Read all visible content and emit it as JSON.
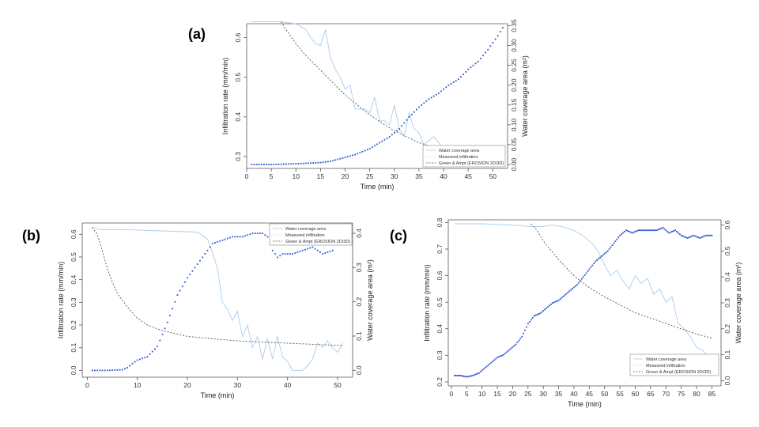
{
  "panels": {
    "a": "(a)",
    "b": "(b)",
    "c": "(c)"
  },
  "colors": {
    "water": "#a9cdee",
    "measured": "#2f55d4",
    "model": "#555555"
  },
  "chart_data": [
    {
      "id": "a",
      "type": "line",
      "xlabel": "Time (min)",
      "ylabel": "Infiltration rate (mm/min)",
      "y2label": "Water coverage area (m²)",
      "xlim": [
        0,
        53
      ],
      "ylim": [
        0.27,
        0.635
      ],
      "y2lim": [
        -0.01,
        0.355
      ],
      "xticks": [
        0,
        5,
        10,
        15,
        20,
        25,
        30,
        35,
        40,
        45,
        50
      ],
      "yticks": [
        0.3,
        0.4,
        0.5,
        0.6
      ],
      "y2ticks": [
        0.0,
        0.05,
        0.1,
        0.15,
        0.2,
        0.25,
        0.3,
        0.35
      ],
      "legend": [
        "Water coverage area",
        "Measured infiltration",
        "Green & Ampt (EROSION 2D/3D)"
      ],
      "legend_position": "bottom-right",
      "series": [
        {
          "name": "Measured infiltration",
          "axis": "left",
          "style": "solid",
          "x": [
            1,
            7,
            10,
            12,
            13,
            14,
            15,
            16,
            17,
            18,
            19,
            20,
            21,
            22,
            24,
            25,
            26,
            27,
            28,
            29,
            30,
            31,
            32,
            33,
            34,
            35,
            36,
            37,
            38,
            40,
            42,
            52
          ],
          "y": [
            0.64,
            0.64,
            0.635,
            0.62,
            0.6,
            0.585,
            0.58,
            0.62,
            0.55,
            0.52,
            0.5,
            0.47,
            0.48,
            0.42,
            0.42,
            0.41,
            0.45,
            0.39,
            0.39,
            0.38,
            0.43,
            0.37,
            0.35,
            0.41,
            0.37,
            0.36,
            0.33,
            0.34,
            0.35,
            0.32,
            0.3,
            0.28
          ]
        },
        {
          "name": "Green & Ampt (EROSION 2D/3D)",
          "axis": "left",
          "style": "dashed",
          "x": [
            7,
            8,
            10,
            12,
            14,
            16,
            18,
            20,
            22,
            25,
            28,
            30,
            35,
            40,
            45,
            52
          ],
          "y": [
            0.64,
            0.62,
            0.585,
            0.555,
            0.53,
            0.505,
            0.48,
            0.455,
            0.435,
            0.405,
            0.38,
            0.365,
            0.335,
            0.315,
            0.3,
            0.285
          ]
        },
        {
          "name": "Water coverage area",
          "axis": "right",
          "style": "points",
          "x": [
            1,
            5,
            10,
            15,
            17,
            20,
            22,
            25,
            27,
            29,
            31,
            33,
            35,
            37,
            39,
            41,
            43,
            45,
            47,
            49,
            51,
            52
          ],
          "y": [
            0.0,
            0.0,
            0.002,
            0.005,
            0.008,
            0.018,
            0.025,
            0.04,
            0.055,
            0.07,
            0.09,
            0.12,
            0.145,
            0.165,
            0.18,
            0.2,
            0.215,
            0.24,
            0.26,
            0.29,
            0.325,
            0.345
          ]
        }
      ]
    },
    {
      "id": "b",
      "type": "line",
      "xlabel": "Time (min)",
      "ylabel": "Infiltration rate (mm/min)",
      "y2label": "Water coverage area (m²)",
      "xlim": [
        -1,
        53
      ],
      "ylim": [
        -0.03,
        0.65
      ],
      "y2lim": [
        -0.02,
        0.43
      ],
      "xticks": [
        0,
        10,
        20,
        30,
        40,
        50
      ],
      "yticks": [
        0.0,
        0.1,
        0.2,
        0.3,
        0.4,
        0.5,
        0.6
      ],
      "y2ticks": [
        0.0,
        0.1,
        0.2,
        0.3,
        0.4
      ],
      "legend": [
        "Water coverage area",
        "Measured infiltration",
        "Green & Ampt (EROSION 2D/3D)"
      ],
      "legend_position": "top-right",
      "series": [
        {
          "name": "Measured infiltration",
          "axis": "left",
          "style": "solid",
          "x": [
            1,
            3,
            8,
            15,
            22,
            24,
            25,
            26,
            27,
            28,
            29,
            30,
            31,
            32,
            33,
            34,
            35,
            36,
            37,
            38,
            39,
            40,
            41,
            42,
            43,
            44,
            45,
            46,
            47,
            48,
            49,
            50,
            51
          ],
          "y": [
            0.63,
            0.62,
            0.62,
            0.615,
            0.61,
            0.58,
            0.52,
            0.45,
            0.3,
            0.27,
            0.22,
            0.26,
            0.15,
            0.2,
            0.1,
            0.15,
            0.05,
            0.14,
            0.05,
            0.15,
            0.06,
            0.04,
            0.0,
            0.0,
            0.0,
            0.02,
            0.05,
            0.12,
            0.1,
            0.13,
            0.1,
            0.08,
            0.12
          ]
        },
        {
          "name": "Green & Ampt (EROSION 2D/3D)",
          "axis": "left",
          "style": "dashed",
          "x": [
            1,
            2,
            3,
            4,
            5,
            6,
            8,
            10,
            12,
            15,
            20,
            25,
            30,
            35,
            40,
            45,
            51
          ],
          "y": [
            0.63,
            0.6,
            0.53,
            0.45,
            0.39,
            0.34,
            0.28,
            0.23,
            0.2,
            0.175,
            0.15,
            0.14,
            0.13,
            0.125,
            0.12,
            0.115,
            0.11
          ]
        },
        {
          "name": "Water coverage area",
          "axis": "right",
          "style": "points",
          "x": [
            1,
            4,
            7,
            8,
            9,
            10,
            12,
            14,
            16,
            18,
            20,
            22,
            23,
            24,
            25,
            27,
            29,
            31,
            33,
            35,
            36,
            37,
            38,
            39,
            41,
            43,
            45,
            47,
            49
          ],
          "y": [
            0.0,
            0.0,
            0.002,
            0.008,
            0.02,
            0.03,
            0.04,
            0.07,
            0.14,
            0.22,
            0.27,
            0.31,
            0.33,
            0.35,
            0.37,
            0.38,
            0.39,
            0.39,
            0.4,
            0.4,
            0.39,
            0.35,
            0.33,
            0.34,
            0.34,
            0.35,
            0.36,
            0.34,
            0.35
          ]
        }
      ]
    },
    {
      "id": "c",
      "type": "line",
      "xlabel": "Time (min)",
      "ylabel": "Infiltration rate (mm/min)",
      "y2label": "Water coverage area (m²)",
      "xlim": [
        -1,
        88
      ],
      "ylim": [
        0.185,
        0.81
      ],
      "y2lim": [
        -0.02,
        0.62
      ],
      "xticks": [
        0,
        5,
        10,
        15,
        20,
        25,
        30,
        35,
        40,
        45,
        50,
        55,
        60,
        65,
        70,
        75,
        80,
        85
      ],
      "yticks": [
        0.2,
        0.3,
        0.4,
        0.5,
        0.6,
        0.7,
        0.8
      ],
      "y2ticks": [
        0.0,
        0.1,
        0.2,
        0.3,
        0.4,
        0.5,
        0.6
      ],
      "legend": [
        "Water coverage area",
        "Measured infiltration",
        "Green & Ampt (EROSION 2D/3D)"
      ],
      "legend_position": "bottom-right",
      "series": [
        {
          "name": "Measured infiltration",
          "axis": "left",
          "style": "solid",
          "x": [
            1,
            10,
            20,
            26,
            30,
            33,
            36,
            40,
            43,
            46,
            48,
            50,
            52,
            54,
            56,
            58,
            60,
            62,
            64,
            66,
            68,
            70,
            72,
            74,
            76,
            78,
            80,
            82,
            84,
            85
          ],
          "y": [
            0.795,
            0.795,
            0.79,
            0.785,
            0.785,
            0.79,
            0.785,
            0.77,
            0.75,
            0.72,
            0.69,
            0.64,
            0.6,
            0.62,
            0.58,
            0.55,
            0.6,
            0.57,
            0.59,
            0.53,
            0.55,
            0.5,
            0.52,
            0.42,
            0.4,
            0.37,
            0.33,
            0.32,
            0.29,
            0.3
          ]
        },
        {
          "name": "Green & Ampt (EROSION 2D/3D)",
          "axis": "left",
          "style": "dashed",
          "x": [
            26,
            28,
            30,
            35,
            40,
            45,
            50,
            55,
            60,
            65,
            70,
            75,
            80,
            85
          ],
          "y": [
            0.795,
            0.77,
            0.73,
            0.66,
            0.6,
            0.555,
            0.52,
            0.49,
            0.46,
            0.44,
            0.42,
            0.4,
            0.38,
            0.365
          ]
        },
        {
          "name": "Water coverage area",
          "axis": "right",
          "style": "points",
          "x": [
            1,
            3,
            5,
            7,
            9,
            11,
            13,
            15,
            17,
            19,
            21,
            23,
            25,
            27,
            29,
            31,
            33,
            35,
            37,
            39,
            41,
            43,
            45,
            47,
            49,
            51,
            53,
            55,
            57,
            59,
            61,
            63,
            65,
            67,
            69,
            71,
            73,
            75,
            77,
            79,
            81,
            83,
            85
          ],
          "y": [
            0.02,
            0.02,
            0.015,
            0.02,
            0.03,
            0.05,
            0.07,
            0.09,
            0.1,
            0.12,
            0.14,
            0.17,
            0.22,
            0.25,
            0.26,
            0.28,
            0.3,
            0.31,
            0.33,
            0.35,
            0.37,
            0.4,
            0.43,
            0.46,
            0.48,
            0.5,
            0.53,
            0.56,
            0.58,
            0.57,
            0.58,
            0.58,
            0.58,
            0.58,
            0.59,
            0.57,
            0.58,
            0.56,
            0.55,
            0.56,
            0.55,
            0.56,
            0.56
          ]
        }
      ]
    }
  ]
}
